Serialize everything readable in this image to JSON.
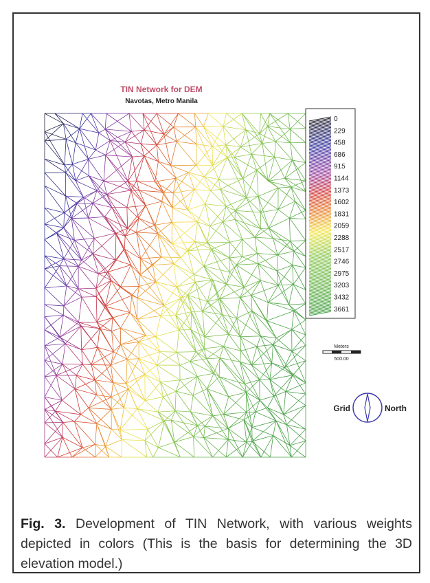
{
  "figure": {
    "title": "TIN Network for DEM",
    "subtitle": "Navotas, Metro Manila",
    "legend": [
      "0",
      "229",
      "458",
      "686",
      "915",
      "1144",
      "1373",
      "1602",
      "1831",
      "2059",
      "2288",
      "2517",
      "2746",
      "2975",
      "3203",
      "3432",
      "3661"
    ],
    "scale": {
      "unit": "Meters",
      "label": "500.00"
    },
    "compass": {
      "left": "Grid",
      "right": "North"
    }
  },
  "caption": {
    "label": "Fig. 3.",
    "text": "Development of TIN Network, with various weights depicted in colors (This is the basis for determining the 3D elevation model.)"
  }
}
